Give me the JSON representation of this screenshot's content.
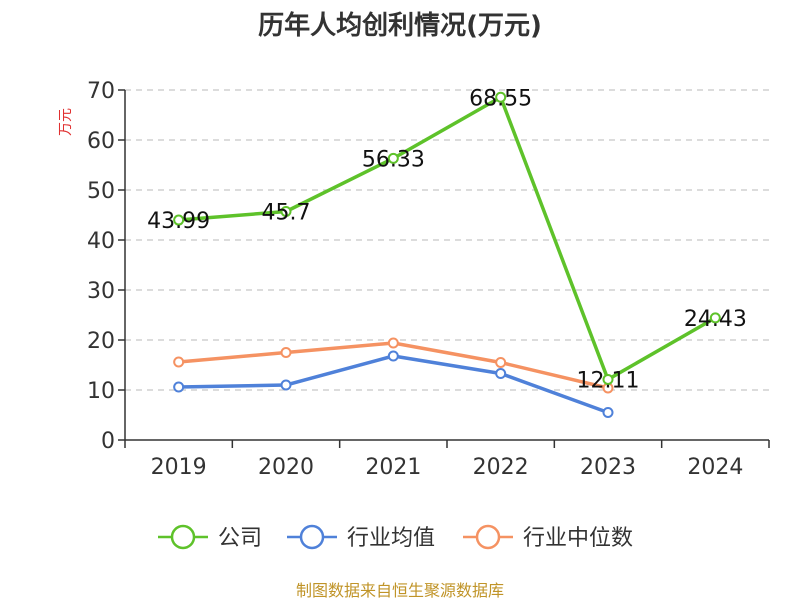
{
  "chart_data": {
    "type": "line",
    "title": "历年人均创利情况(万元)",
    "ylabel": "万元",
    "xlabel": "",
    "categories": [
      "2019",
      "2020",
      "2021",
      "2022",
      "2023",
      "2024"
    ],
    "ylim": [
      0,
      70
    ],
    "yticks": [
      0,
      10,
      20,
      30,
      40,
      50,
      60,
      70
    ],
    "grid": true,
    "legend_position": "bottom",
    "series": [
      {
        "name": "公司",
        "color": "#5ec22a",
        "values": [
          43.99,
          45.7,
          56.33,
          68.55,
          12.11,
          24.43
        ],
        "labels": [
          "43.99",
          "45.7",
          "56.33",
          "68.55",
          "12.11",
          "24.43"
        ]
      },
      {
        "name": "行业均值",
        "color": "#4f81d9",
        "values": [
          10.6,
          11.0,
          16.8,
          13.3,
          5.5,
          null
        ]
      },
      {
        "name": "行业中位数",
        "color": "#f59262",
        "values": [
          15.6,
          17.5,
          19.4,
          15.5,
          10.4,
          null
        ]
      }
    ],
    "source": "制图数据来自恒生聚源数据库"
  }
}
